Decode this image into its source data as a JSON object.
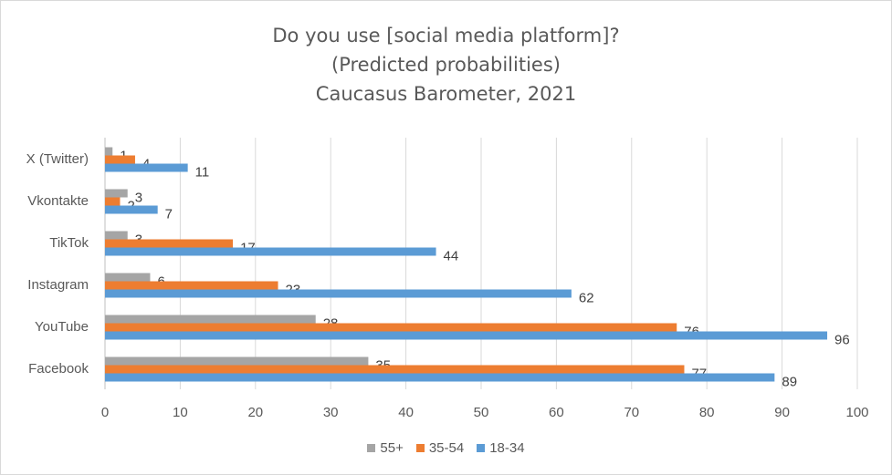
{
  "chart_data": {
    "type": "bar",
    "orientation": "horizontal",
    "title": [
      "Do you use [social media platform]?",
      "(Predicted probabilities)",
      "Caucasus Barometer, 2021"
    ],
    "categories": [
      "X (Twitter)",
      "Vkontakte",
      "TikTok",
      "Instagram",
      "YouTube",
      "Facebook"
    ],
    "series": [
      {
        "name": "55+",
        "color": "#a5a5a5",
        "values": [
          1,
          3,
          3,
          6,
          28,
          35
        ]
      },
      {
        "name": "35-54",
        "color": "#ed7d31",
        "values": [
          4,
          2,
          17,
          23,
          76,
          77
        ]
      },
      {
        "name": "18-34",
        "color": "#5b9bd5",
        "values": [
          11,
          7,
          44,
          62,
          96,
          89
        ]
      }
    ],
    "xlim": [
      0,
      100
    ],
    "xticks": [
      0,
      10,
      20,
      30,
      40,
      50,
      60,
      70,
      80,
      90,
      100
    ],
    "grid": true,
    "legend_position": "bottom",
    "data_labels": true
  }
}
